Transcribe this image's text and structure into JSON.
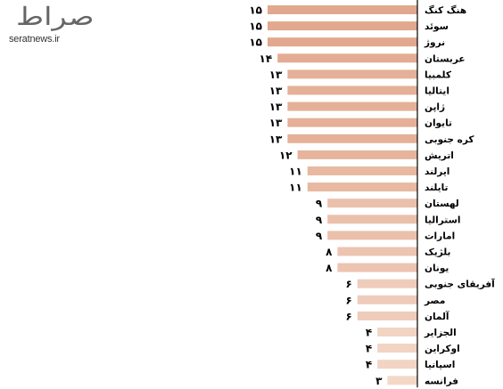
{
  "logo": {
    "mark": "صراط",
    "site": "seratnews.ir"
  },
  "chart_data": {
    "type": "bar",
    "orientation": "horizontal",
    "categories": [
      "هنگ کنگ",
      "سوئد",
      "نروژ",
      "عربستان",
      "کلمبیا",
      "ایتالیا",
      "ژاپن",
      "تایوان",
      "کره جنوبی",
      "اتریش",
      "ایرلند",
      "تایلند",
      "لهستان",
      "استرالیا",
      "امارات",
      "بلژیک",
      "یونان",
      "آفریقای جنوبی",
      "مصر",
      "آلمان",
      "الجزایر",
      "اوکراین",
      "اسپانیا",
      "فرانسه"
    ],
    "values": [
      15,
      15,
      15,
      14,
      13,
      13,
      13,
      13,
      13,
      12,
      11,
      11,
      9,
      9,
      9,
      8,
      8,
      6,
      6,
      6,
      4,
      4,
      4,
      3
    ],
    "value_labels": [
      "۱۵",
      "۱۵",
      "۱۵",
      "۱۴",
      "۱۳",
      "۱۳",
      "۱۳",
      "۱۳",
      "۱۳",
      "۱۲",
      "۱۱",
      "۱۱",
      "۹",
      "۹",
      "۹",
      "۸",
      "۸",
      "۶",
      "۶",
      "۶",
      "۴",
      "۴",
      "۴",
      "۳"
    ],
    "xlim": [
      0,
      15
    ],
    "grid": false,
    "colors": {
      "high": "#e2a88e",
      "low": "#f3d8c8",
      "axis": "#000000",
      "text": "#000000"
    }
  }
}
